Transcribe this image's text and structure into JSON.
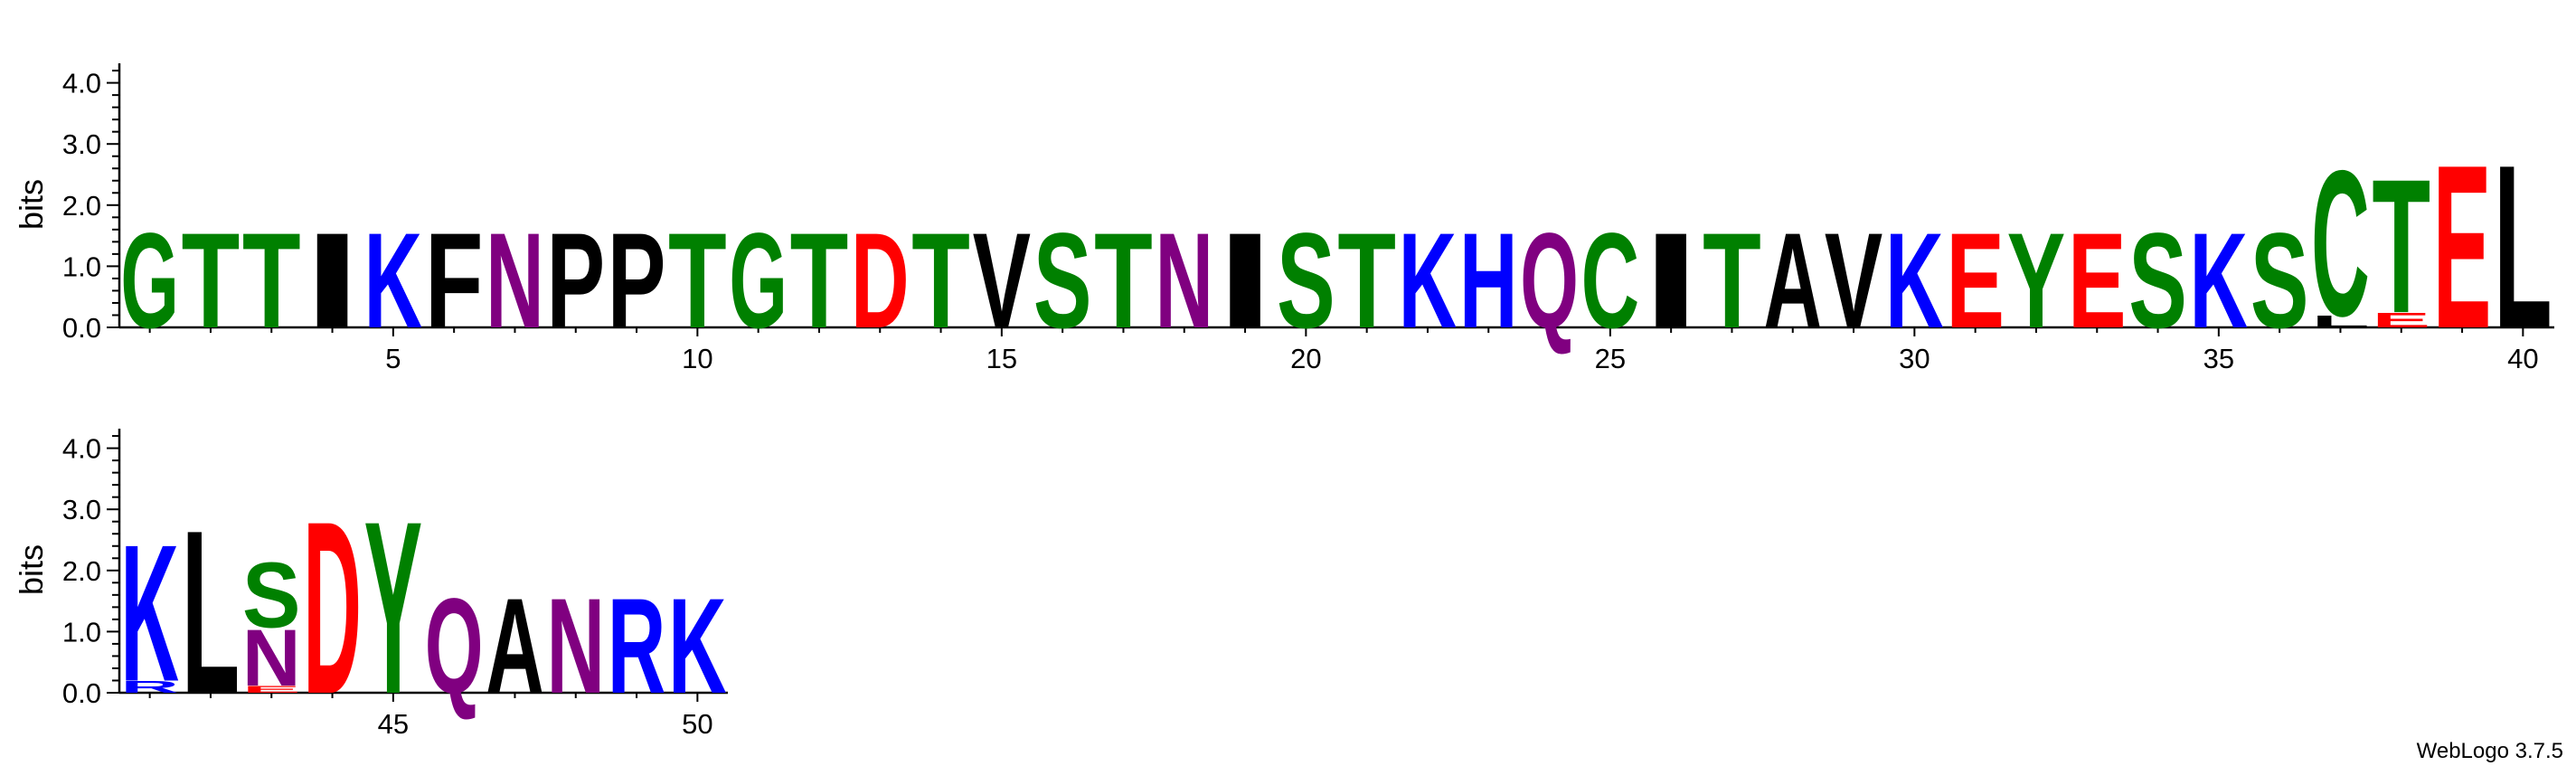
{
  "footer": {
    "version_label": "WebLogo 3.7.5"
  },
  "colors": {
    "G": "#008000",
    "S": "#008000",
    "T": "#008000",
    "Y": "#008000",
    "C": "#008000",
    "N": "#800080",
    "Q": "#800080",
    "K": "#0000ff",
    "R": "#0000ff",
    "H": "#0000ff",
    "D": "#ff0000",
    "E": "#ff0000",
    "A": "#000000",
    "V": "#000000",
    "L": "#000000",
    "I": "#000000",
    "P": "#000000",
    "W": "#000000",
    "F": "#000000",
    "M": "#000000"
  },
  "chart_data": [
    {
      "type": "sequence-logo",
      "ylabel": "bits",
      "ylim": [
        0,
        4.32
      ],
      "yticks": [
        "0.0",
        "1.0",
        "2.0",
        "3.0",
        "4.0"
      ],
      "xticks": [
        5,
        10,
        15,
        20,
        25,
        30,
        35,
        40
      ],
      "positions": [
        {
          "pos": 1,
          "stack": [
            {
              "letter": "G",
              "bits": 1.6
            }
          ]
        },
        {
          "pos": 2,
          "stack": [
            {
              "letter": "T",
              "bits": 1.6
            }
          ]
        },
        {
          "pos": 3,
          "stack": [
            {
              "letter": "T",
              "bits": 1.6
            }
          ]
        },
        {
          "pos": 4,
          "stack": [
            {
              "letter": "I",
              "bits": 1.6
            }
          ]
        },
        {
          "pos": 5,
          "stack": [
            {
              "letter": "K",
              "bits": 1.6
            }
          ]
        },
        {
          "pos": 6,
          "stack": [
            {
              "letter": "F",
              "bits": 1.6
            }
          ]
        },
        {
          "pos": 7,
          "stack": [
            {
              "letter": "N",
              "bits": 1.6
            }
          ]
        },
        {
          "pos": 8,
          "stack": [
            {
              "letter": "P",
              "bits": 1.6
            }
          ]
        },
        {
          "pos": 9,
          "stack": [
            {
              "letter": "P",
              "bits": 1.6
            }
          ]
        },
        {
          "pos": 10,
          "stack": [
            {
              "letter": "T",
              "bits": 1.6
            }
          ]
        },
        {
          "pos": 11,
          "stack": [
            {
              "letter": "G",
              "bits": 1.6
            }
          ]
        },
        {
          "pos": 12,
          "stack": [
            {
              "letter": "T",
              "bits": 1.6
            }
          ]
        },
        {
          "pos": 13,
          "stack": [
            {
              "letter": "D",
              "bits": 1.6
            }
          ]
        },
        {
          "pos": 14,
          "stack": [
            {
              "letter": "T",
              "bits": 1.6
            }
          ]
        },
        {
          "pos": 15,
          "stack": [
            {
              "letter": "V",
              "bits": 1.6
            }
          ]
        },
        {
          "pos": 16,
          "stack": [
            {
              "letter": "S",
              "bits": 1.6
            }
          ]
        },
        {
          "pos": 17,
          "stack": [
            {
              "letter": "T",
              "bits": 1.6
            }
          ]
        },
        {
          "pos": 18,
          "stack": [
            {
              "letter": "N",
              "bits": 1.6
            }
          ]
        },
        {
          "pos": 19,
          "stack": [
            {
              "letter": "I",
              "bits": 1.6
            }
          ]
        },
        {
          "pos": 20,
          "stack": [
            {
              "letter": "S",
              "bits": 1.6
            }
          ]
        },
        {
          "pos": 21,
          "stack": [
            {
              "letter": "T",
              "bits": 1.6
            }
          ]
        },
        {
          "pos": 22,
          "stack": [
            {
              "letter": "K",
              "bits": 1.6
            }
          ]
        },
        {
          "pos": 23,
          "stack": [
            {
              "letter": "H",
              "bits": 1.6
            }
          ]
        },
        {
          "pos": 24,
          "stack": [
            {
              "letter": "Q",
              "bits": 1.6
            }
          ]
        },
        {
          "pos": 25,
          "stack": [
            {
              "letter": "C",
              "bits": 1.6
            }
          ]
        },
        {
          "pos": 26,
          "stack": [
            {
              "letter": "I",
              "bits": 1.6
            }
          ]
        },
        {
          "pos": 27,
          "stack": [
            {
              "letter": "T",
              "bits": 1.6
            }
          ]
        },
        {
          "pos": 28,
          "stack": [
            {
              "letter": "A",
              "bits": 1.6
            }
          ]
        },
        {
          "pos": 29,
          "stack": [
            {
              "letter": "V",
              "bits": 1.6
            }
          ]
        },
        {
          "pos": 30,
          "stack": [
            {
              "letter": "K",
              "bits": 1.6
            }
          ]
        },
        {
          "pos": 31,
          "stack": [
            {
              "letter": "E",
              "bits": 1.6
            }
          ]
        },
        {
          "pos": 32,
          "stack": [
            {
              "letter": "Y",
              "bits": 1.6
            }
          ]
        },
        {
          "pos": 33,
          "stack": [
            {
              "letter": "E",
              "bits": 1.6
            }
          ]
        },
        {
          "pos": 34,
          "stack": [
            {
              "letter": "S",
              "bits": 1.6
            }
          ]
        },
        {
          "pos": 35,
          "stack": [
            {
              "letter": "K",
              "bits": 1.6
            }
          ]
        },
        {
          "pos": 36,
          "stack": [
            {
              "letter": "S",
              "bits": 1.6
            }
          ]
        },
        {
          "pos": 37,
          "stack": [
            {
              "letter": "L",
              "bits": 0.2
            },
            {
              "letter": "C",
              "bits": 2.45
            }
          ]
        },
        {
          "pos": 38,
          "stack": [
            {
              "letter": "E",
              "bits": 0.25
            },
            {
              "letter": "T",
              "bits": 2.25
            }
          ]
        },
        {
          "pos": 39,
          "stack": [
            {
              "letter": "E",
              "bits": 2.75
            }
          ]
        },
        {
          "pos": 40,
          "stack": [
            {
              "letter": "L",
              "bits": 2.75
            }
          ]
        }
      ]
    },
    {
      "type": "sequence-logo",
      "ylabel": "bits",
      "ylim": [
        0,
        4.32
      ],
      "yticks": [
        "0.0",
        "1.0",
        "2.0",
        "3.0",
        "4.0"
      ],
      "xticks": [
        45,
        50
      ],
      "positions": [
        {
          "pos": 41,
          "stack": [
            {
              "letter": "R",
              "bits": 0.2
            },
            {
              "letter": "K",
              "bits": 2.3
            }
          ]
        },
        {
          "pos": 42,
          "stack": [
            {
              "letter": "L",
              "bits": 2.75
            }
          ]
        },
        {
          "pos": 43,
          "stack": [
            {
              "letter": "E",
              "bits": 0.12
            },
            {
              "letter": "N",
              "bits": 0.95
            },
            {
              "letter": "S",
              "bits": 1.1
            }
          ]
        },
        {
          "pos": 44,
          "stack": [
            {
              "letter": "D",
              "bits": 2.9
            }
          ]
        },
        {
          "pos": 45,
          "stack": [
            {
              "letter": "Y",
              "bits": 2.9
            }
          ]
        },
        {
          "pos": 46,
          "stack": [
            {
              "letter": "Q",
              "bits": 1.6
            }
          ]
        },
        {
          "pos": 47,
          "stack": [
            {
              "letter": "A",
              "bits": 1.6
            }
          ]
        },
        {
          "pos": 48,
          "stack": [
            {
              "letter": "N",
              "bits": 1.6
            }
          ]
        },
        {
          "pos": 49,
          "stack": [
            {
              "letter": "R",
              "bits": 1.6
            }
          ]
        },
        {
          "pos": 50,
          "stack": [
            {
              "letter": "K",
              "bits": 1.6
            }
          ]
        }
      ]
    }
  ]
}
